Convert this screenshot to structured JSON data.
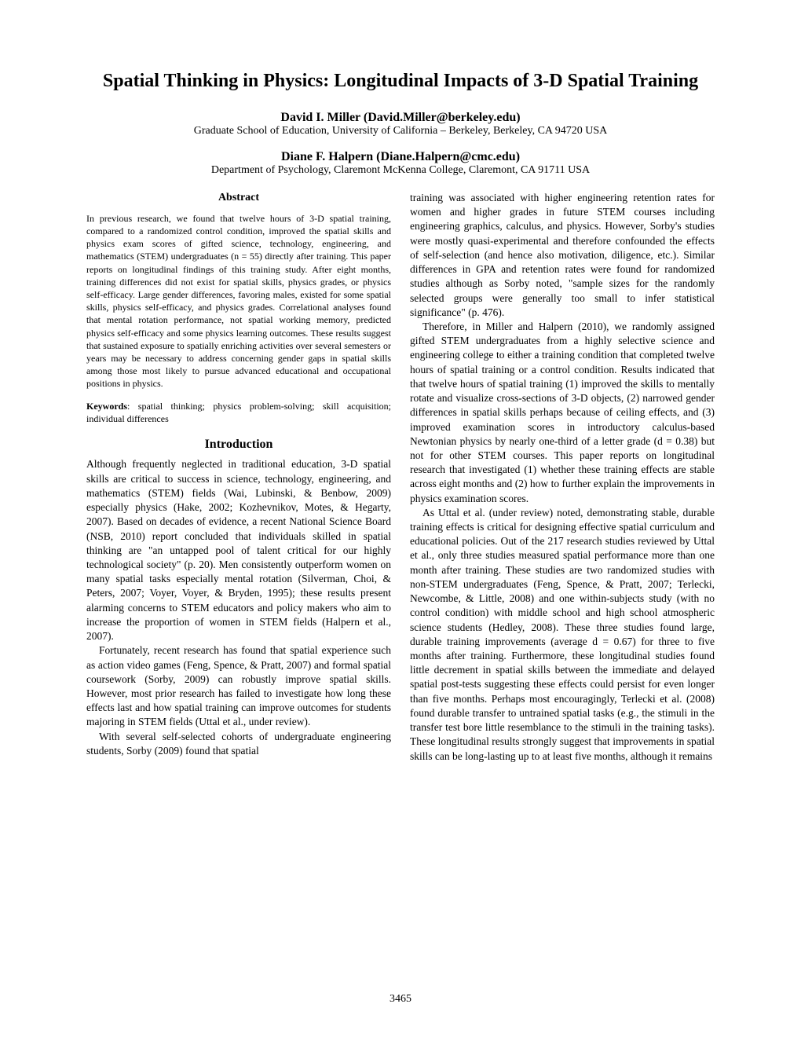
{
  "title": "Spatial Thinking in Physics: Longitudinal Impacts of 3-D Spatial Training",
  "authors": [
    {
      "name": "David I. Miller (David.Miller@berkeley.edu)",
      "affiliation": "Graduate School of Education, University of California – Berkeley, Berkeley, CA 94720 USA"
    },
    {
      "name": "Diane F. Halpern (Diane.Halpern@cmc.edu)",
      "affiliation": "Department of Psychology, Claremont McKenna College, Claremont, CA 91711 USA"
    }
  ],
  "abstract": {
    "heading": "Abstract",
    "text": "In previous research, we found that twelve hours of 3-D spatial training, compared to a randomized control condition, improved the spatial skills and physics exam scores of gifted science, technology, engineering, and mathematics (STEM) undergraduates (n = 55) directly after training. This paper reports on longitudinal findings of this training study. After eight months, training differences did not exist for spatial skills, physics grades, or physics self-efficacy. Large gender differences, favoring males, existed for some spatial skills, physics self-efficacy, and physics grades. Correlational analyses found that mental rotation performance, not spatial working memory, predicted physics self-efficacy and some physics learning outcomes. These results suggest that sustained exposure to spatially enriching activities over several semesters or years may be necessary to address concerning gender gaps in spatial skills among those most likely to pursue advanced educational and occupational positions in physics.",
    "keywords_label": "Keywords",
    "keywords_text": ": spatial thinking; physics problem-solving; skill acquisition; individual differences"
  },
  "introduction": {
    "heading": "Introduction",
    "para1": "Although frequently neglected in traditional education, 3-D spatial skills are critical to success in science, technology, engineering, and mathematics (STEM) fields (Wai, Lubinski, & Benbow, 2009) especially physics (Hake, 2002; Kozhevnikov, Motes, & Hegarty, 2007). Based on decades of evidence, a recent National Science Board (NSB, 2010) report concluded that individuals skilled in spatial thinking are \"an untapped pool of talent critical for our highly technological society\" (p. 20). Men consistently outperform women on many spatial tasks especially mental rotation (Silverman, Choi, & Peters, 2007; Voyer, Voyer, & Bryden, 1995); these results present alarming concerns to STEM educators and policy makers who aim to increase the proportion of women in STEM fields (Halpern et al., 2007).",
    "para2": "Fortunately, recent research has found that spatial experience such as action video games (Feng, Spence, & Pratt, 2007) and formal spatial coursework (Sorby, 2009) can robustly improve spatial skills. However, most prior research has failed to investigate how long these effects last and how spatial training can improve outcomes for students majoring in STEM fields (Uttal et al., under review).",
    "para3": "With several self-selected cohorts of undergraduate engineering students, Sorby (2009) found that spatial"
  },
  "right_column": {
    "para1": "training was associated with higher engineering retention rates for women and higher grades in future STEM courses including engineering graphics, calculus, and physics. However, Sorby's studies were mostly quasi-experimental and therefore confounded the effects of self-selection (and hence also motivation, diligence, etc.). Similar differences in GPA and retention rates were found for randomized studies although as Sorby noted, \"sample sizes for the randomly selected groups were generally too small to infer statistical significance\" (p. 476).",
    "para2": "Therefore, in Miller and Halpern (2010), we randomly assigned gifted STEM undergraduates from a highly selective science and engineering college to either a training condition that completed twelve hours of spatial training or a control condition. Results indicated that that twelve hours of spatial training (1) improved the skills to mentally rotate and visualize cross-sections of 3-D objects, (2) narrowed gender differences in spatial skills perhaps because of ceiling effects, and (3) improved examination scores in introductory calculus-based Newtonian physics by nearly one-third of a letter grade (d = 0.38) but not for other STEM courses. This paper reports on longitudinal research that investigated (1) whether these training effects are stable across eight months and (2) how to further explain the improvements in physics examination scores.",
    "para3": "As Uttal et al. (under review) noted, demonstrating stable, durable training effects is critical for designing effective spatial curriculum and educational policies. Out of the 217 research studies reviewed by Uttal et al., only three studies measured spatial performance more than one month after training. These studies are two randomized studies with non-STEM undergraduates (Feng, Spence, & Pratt, 2007; Terlecki, Newcombe, & Little, 2008) and one within-subjects study (with no control condition) with middle school and high school atmospheric science students (Hedley, 2008). These three studies found large, durable training improvements (average d = 0.67) for three to five months after training. Furthermore, these longitudinal studies found little decrement in spatial skills between the immediate and delayed spatial post-tests suggesting these effects could persist for even longer than five months. Perhaps most encouragingly, Terlecki et al. (2008) found durable transfer to untrained spatial tasks (e.g., the stimuli in the transfer test bore little resemblance to the stimuli in the training tasks). These longitudinal results strongly suggest that improvements in spatial skills can be long-lasting up to at least five months, although it remains"
  },
  "page_number": "3465"
}
